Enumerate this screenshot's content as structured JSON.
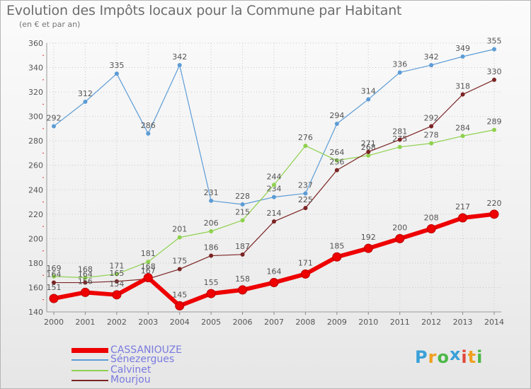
{
  "header": {
    "title": "Evolution des Impôts locaux pour la Commune par Habitant",
    "subtitle": "(en € et par an)"
  },
  "logo": {
    "letters": [
      "P",
      "r",
      "o",
      "x",
      "i",
      "t",
      "i"
    ],
    "colors": [
      "#3aa0d8",
      "#f0a020",
      "#4cb848",
      "#3aa0d8",
      "#e0483a",
      "#f0a020",
      "#4cb848"
    ]
  },
  "chart_data": {
    "type": "line",
    "x": [
      "2000",
      "2001",
      "2002",
      "2003",
      "2004",
      "2005",
      "2006",
      "2007",
      "2008",
      "2009",
      "2010",
      "2011",
      "2012",
      "2013",
      "2014"
    ],
    "ylim": [
      140,
      360
    ],
    "yticks": [
      140,
      160,
      180,
      200,
      220,
      240,
      260,
      280,
      300,
      320,
      340,
      360
    ],
    "grid": true,
    "legend_position": "bottom-left",
    "series": [
      {
        "name": "Sénezergues",
        "color": "#5c9cd6",
        "width": 1.2,
        "values": [
          292,
          312,
          335,
          286,
          342,
          231,
          228,
          234,
          237,
          294,
          314,
          336,
          342,
          349,
          355
        ]
      },
      {
        "name": "Calvinet",
        "color": "#8fd14f",
        "width": 1.2,
        "values": [
          169,
          168,
          171,
          181,
          201,
          206,
          215,
          244,
          276,
          264,
          268,
          275,
          278,
          284,
          289
        ]
      },
      {
        "name": "Mourjou",
        "color": "#7b2424",
        "width": 1.2,
        "values": [
          164,
          164,
          165,
          167,
          175,
          186,
          187,
          214,
          225,
          256,
          271,
          281,
          292,
          318,
          330
        ]
      },
      {
        "name": "CASSANIOUZE",
        "color": "#ee0000",
        "width": 6,
        "values": [
          151,
          156,
          154,
          168,
          145,
          155,
          158,
          164,
          171,
          185,
          192,
          200,
          208,
          217,
          220
        ]
      }
    ]
  }
}
